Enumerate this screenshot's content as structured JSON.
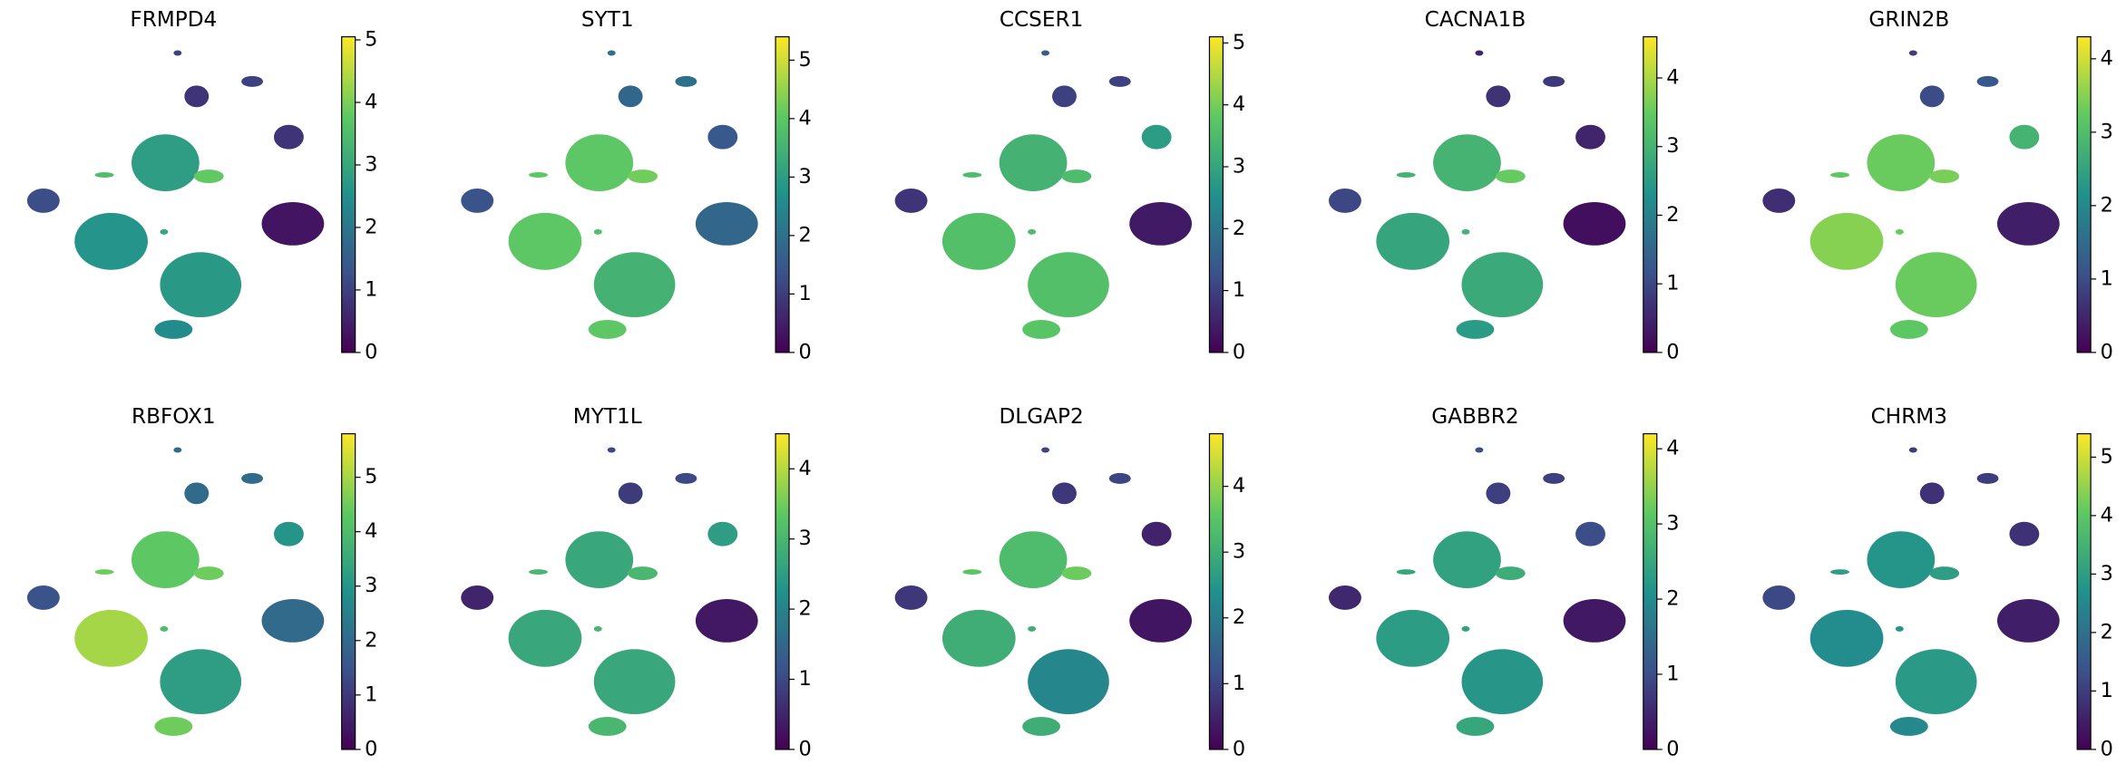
{
  "chart_data": [
    {
      "type": "embedding",
      "title": "FRMPD4",
      "values": [
        1,
        0.8,
        1,
        0.8,
        0.3,
        1.2,
        3.5,
        2.8,
        3.8,
        2.6,
        3,
        2.7,
        2.4
      ],
      "colorlim": [
        0,
        5.05
      ],
      "colorticks": [
        0,
        1,
        2,
        3,
        4,
        5
      ]
    },
    {
      "type": "embedding",
      "title": "SYT1",
      "values": [
        2,
        1.8,
        2,
        1.5,
        1.8,
        1.4,
        4,
        4,
        4.2,
        4,
        3.8,
        3.5,
        4
      ],
      "colorlim": [
        0,
        5.4
      ],
      "colorticks": [
        0,
        1,
        2,
        3,
        4,
        5
      ]
    },
    {
      "type": "embedding",
      "title": "CCSER1",
      "values": [
        1.5,
        1,
        1,
        2.8,
        0.4,
        0.8,
        3.5,
        3.3,
        3.5,
        3.6,
        3.5,
        3.6,
        3.7
      ],
      "colorlim": [
        0,
        5.1
      ],
      "colorticks": [
        0,
        1,
        2,
        3,
        4,
        5
      ]
    },
    {
      "type": "embedding",
      "title": "CACNA1B",
      "values": [
        0.5,
        0.7,
        0.8,
        0.5,
        0.2,
        1,
        3,
        3,
        3.5,
        2.7,
        3,
        2.8,
        2.5
      ],
      "colorlim": [
        0,
        4.6
      ],
      "colorticks": [
        0,
        1,
        2,
        3,
        4
      ]
    },
    {
      "type": "embedding",
      "title": "GRIN2B",
      "values": [
        0.8,
        1,
        1.2,
        2.8,
        0.4,
        0.6,
        3.2,
        3.3,
        3.4,
        3.5,
        3.3,
        3.3,
        3.2
      ],
      "colorlim": [
        0,
        4.3
      ],
      "colorticks": [
        0,
        1,
        2,
        3,
        4
      ]
    },
    {
      "type": "embedding",
      "title": "RBFOX1",
      "values": [
        2,
        2,
        2,
        3,
        2,
        1.5,
        4.5,
        4.3,
        4.5,
        5,
        4,
        3.2,
        4.5
      ],
      "colorlim": [
        0,
        5.8
      ],
      "colorticks": [
        0,
        1,
        2,
        3,
        4,
        5
      ]
    },
    {
      "type": "embedding",
      "title": "MYT1L",
      "values": [
        1,
        0.8,
        1,
        2.5,
        0.3,
        0.5,
        3,
        2.7,
        3,
        2.7,
        3,
        2.7,
        3
      ],
      "colorlim": [
        0,
        4.5
      ],
      "colorticks": [
        0,
        1,
        2,
        3,
        4
      ]
    },
    {
      "type": "embedding",
      "title": "DLGAP2",
      "values": [
        1,
        0.8,
        1,
        0.5,
        0.3,
        0.8,
        3.5,
        3.3,
        3.7,
        3,
        3,
        2.2,
        3
      ],
      "colorlim": [
        0,
        4.8
      ],
      "colorticks": [
        0,
        1,
        2,
        3,
        4
      ]
    },
    {
      "type": "embedding",
      "title": "GABBR2",
      "values": [
        1,
        0.8,
        0.8,
        1,
        0.3,
        0.5,
        2.5,
        2.4,
        2.6,
        2.3,
        2.4,
        2.2,
        2.5
      ],
      "colorlim": [
        0,
        4.2
      ],
      "colorticks": [
        0,
        1,
        2,
        3,
        4
      ]
    },
    {
      "type": "embedding",
      "title": "CHRM3",
      "values": [
        1,
        0.8,
        1,
        0.8,
        0.5,
        1.2,
        3,
        2.8,
        3,
        2.6,
        2.8,
        2.9,
        2.5
      ],
      "colorlim": [
        0,
        5.4
      ],
      "colorticks": [
        0,
        1,
        2,
        3,
        4,
        5
      ]
    }
  ]
}
